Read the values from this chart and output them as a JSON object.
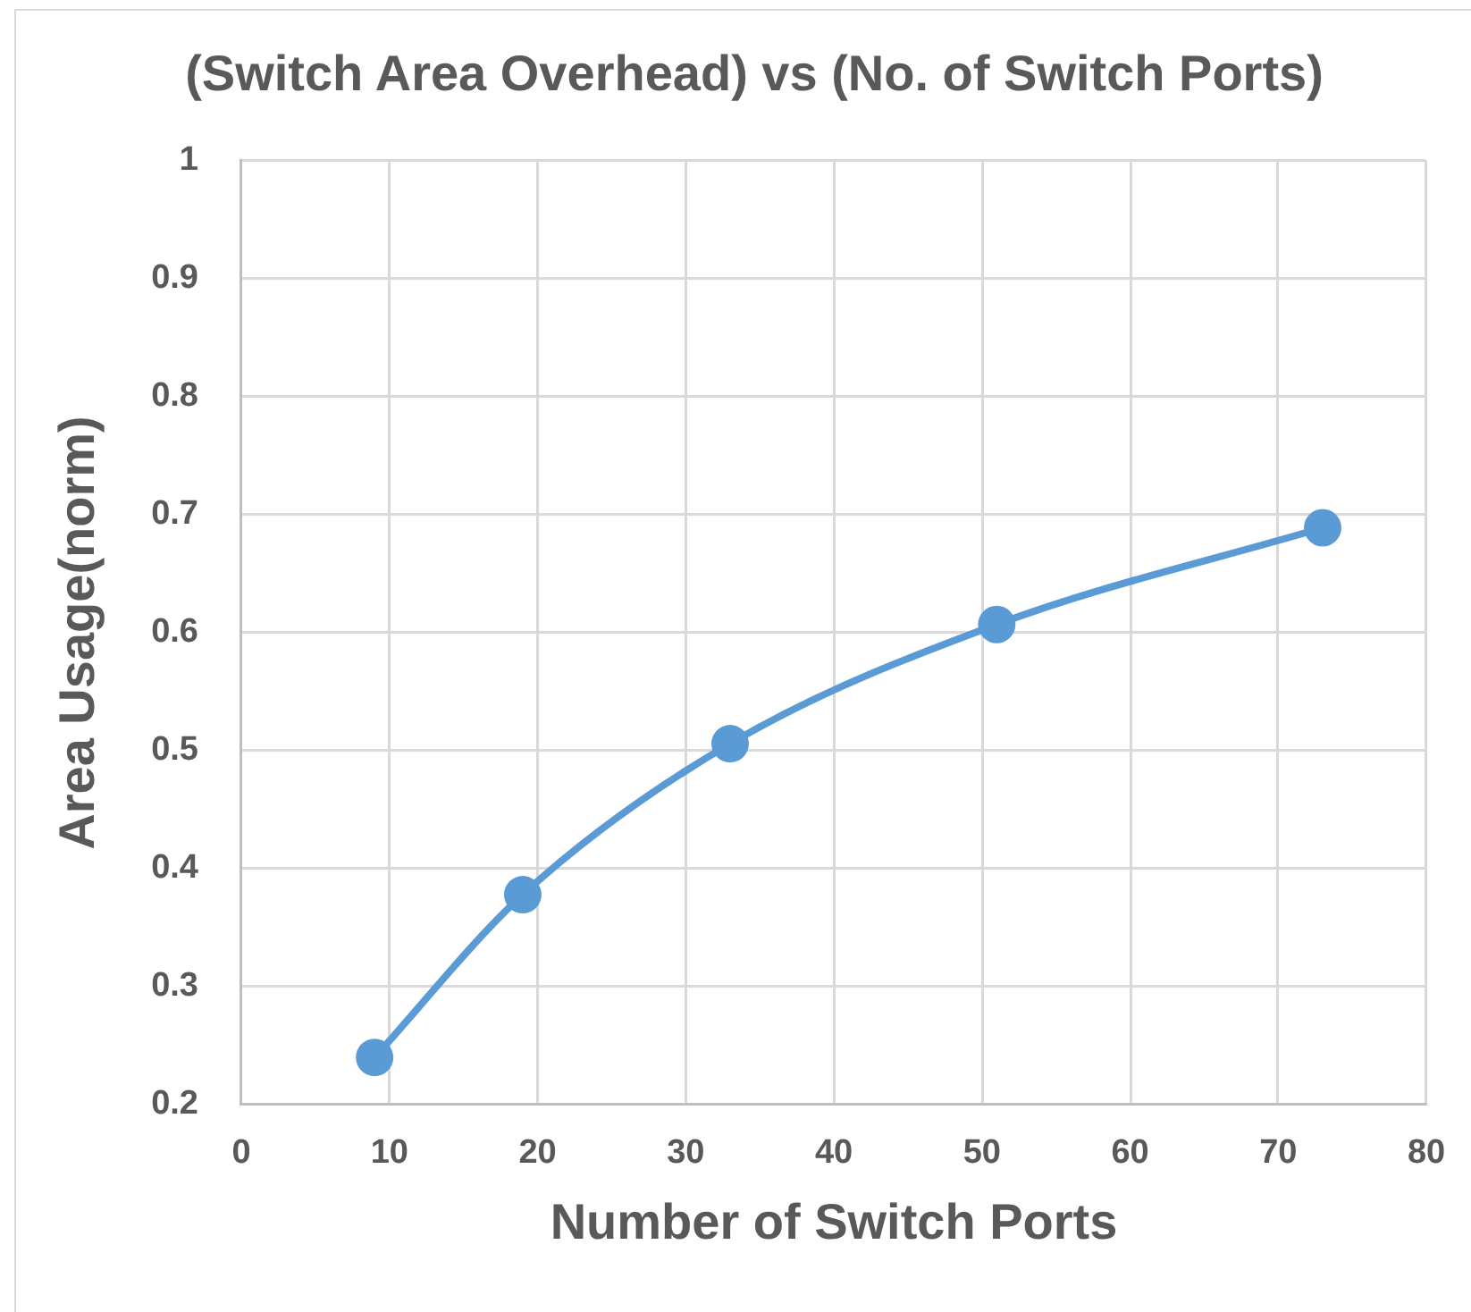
{
  "chart_data": {
    "type": "line",
    "title": "(Switch Area Overhead) vs (No. of Switch Ports)",
    "xlabel": "Number of Switch Ports",
    "ylabel": "Area Usage(norm)",
    "x": [
      9,
      19,
      33,
      51,
      73
    ],
    "series": [
      {
        "color": "#5b9bd5",
        "values": [
          0.24,
          0.378,
          0.506,
          0.607,
          0.689
        ]
      }
    ],
    "xlim": [
      0,
      80
    ],
    "xticks": [
      0,
      10,
      20,
      30,
      40,
      50,
      60,
      70,
      80
    ],
    "ylim": [
      0.2,
      1
    ],
    "yticks": [
      0.2,
      0.3,
      0.4,
      0.5,
      0.6,
      0.7,
      0.8,
      0.9,
      1
    ],
    "grid": true,
    "marker": "circle",
    "line_style": "solid"
  }
}
